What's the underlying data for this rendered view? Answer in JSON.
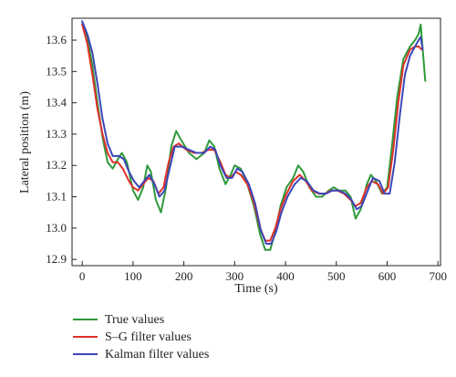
{
  "chart_data": {
    "type": "line",
    "title": "",
    "xlabel": "Time (s)",
    "ylabel": "Lateral position (m)",
    "xlim": [
      -20,
      705
    ],
    "ylim": [
      12.88,
      13.67
    ],
    "xticks": [
      0,
      100,
      200,
      300,
      400,
      500,
      600,
      700
    ],
    "yticks": [
      12.9,
      13.0,
      13.1,
      13.2,
      13.3,
      13.4,
      13.5,
      13.6
    ],
    "yticklabels": [
      "12.9",
      "13.0",
      "13.1",
      "13.2",
      "13.3",
      "13.4",
      "13.5",
      "13.6"
    ],
    "grid": false,
    "legend_position": "below",
    "series": [
      {
        "name": "True values",
        "color": "#2e9a3a",
        "points": [
          [
            0,
            13.66
          ],
          [
            10,
            13.61
          ],
          [
            20,
            13.52
          ],
          [
            30,
            13.4
          ],
          [
            40,
            13.29
          ],
          [
            50,
            13.21
          ],
          [
            60,
            13.19
          ],
          [
            70,
            13.22
          ],
          [
            78,
            13.24
          ],
          [
            88,
            13.21
          ],
          [
            100,
            13.12
          ],
          [
            110,
            13.09
          ],
          [
            120,
            13.13
          ],
          [
            128,
            13.2
          ],
          [
            135,
            13.18
          ],
          [
            145,
            13.09
          ],
          [
            155,
            13.05
          ],
          [
            165,
            13.13
          ],
          [
            175,
            13.26
          ],
          [
            185,
            13.31
          ],
          [
            195,
            13.28
          ],
          [
            210,
            13.24
          ],
          [
            225,
            13.22
          ],
          [
            240,
            13.24
          ],
          [
            250,
            13.28
          ],
          [
            260,
            13.26
          ],
          [
            270,
            13.19
          ],
          [
            282,
            13.14
          ],
          [
            292,
            13.17
          ],
          [
            300,
            13.2
          ],
          [
            312,
            13.19
          ],
          [
            325,
            13.14
          ],
          [
            338,
            13.07
          ],
          [
            350,
            12.98
          ],
          [
            360,
            12.93
          ],
          [
            370,
            12.93
          ],
          [
            380,
            12.99
          ],
          [
            390,
            13.07
          ],
          [
            402,
            13.13
          ],
          [
            415,
            13.16
          ],
          [
            425,
            13.2
          ],
          [
            435,
            13.18
          ],
          [
            447,
            13.13
          ],
          [
            460,
            13.1
          ],
          [
            472,
            13.1
          ],
          [
            485,
            13.12
          ],
          [
            495,
            13.13
          ],
          [
            505,
            13.12
          ],
          [
            518,
            13.12
          ],
          [
            528,
            13.1
          ],
          [
            538,
            13.03
          ],
          [
            548,
            13.06
          ],
          [
            560,
            13.14
          ],
          [
            568,
            13.17
          ],
          [
            578,
            13.15
          ],
          [
            590,
            13.11
          ],
          [
            600,
            13.13
          ],
          [
            610,
            13.27
          ],
          [
            620,
            13.42
          ],
          [
            632,
            13.54
          ],
          [
            645,
            13.58
          ],
          [
            655,
            13.6
          ],
          [
            662,
            13.62
          ],
          [
            666,
            13.65
          ],
          [
            670,
            13.57
          ],
          [
            675,
            13.47
          ]
        ]
      },
      {
        "name": "S–G filter values",
        "color": "#e0302a",
        "points": [
          [
            0,
            13.65
          ],
          [
            10,
            13.59
          ],
          [
            20,
            13.49
          ],
          [
            30,
            13.38
          ],
          [
            40,
            13.3
          ],
          [
            50,
            13.24
          ],
          [
            60,
            13.21
          ],
          [
            70,
            13.21
          ],
          [
            80,
            13.19
          ],
          [
            92,
            13.15
          ],
          [
            100,
            13.13
          ],
          [
            110,
            13.12
          ],
          [
            120,
            13.14
          ],
          [
            130,
            13.16
          ],
          [
            140,
            13.15
          ],
          [
            150,
            13.11
          ],
          [
            160,
            13.13
          ],
          [
            170,
            13.21
          ],
          [
            180,
            13.26
          ],
          [
            190,
            13.27
          ],
          [
            205,
            13.25
          ],
          [
            220,
            13.24
          ],
          [
            235,
            13.24
          ],
          [
            248,
            13.25
          ],
          [
            260,
            13.25
          ],
          [
            272,
            13.21
          ],
          [
            282,
            13.17
          ],
          [
            292,
            13.16
          ],
          [
            302,
            13.18
          ],
          [
            312,
            13.17
          ],
          [
            325,
            13.14
          ],
          [
            338,
            13.08
          ],
          [
            350,
            13.0
          ],
          [
            360,
            12.96
          ],
          [
            370,
            12.96
          ],
          [
            380,
            13.0
          ],
          [
            390,
            13.06
          ],
          [
            402,
            13.11
          ],
          [
            415,
            13.15
          ],
          [
            428,
            13.17
          ],
          [
            440,
            13.15
          ],
          [
            452,
            13.12
          ],
          [
            465,
            13.11
          ],
          [
            478,
            13.11
          ],
          [
            490,
            13.12
          ],
          [
            502,
            13.12
          ],
          [
            515,
            13.11
          ],
          [
            528,
            13.09
          ],
          [
            538,
            13.07
          ],
          [
            548,
            13.08
          ],
          [
            560,
            13.13
          ],
          [
            570,
            13.15
          ],
          [
            582,
            13.14
          ],
          [
            592,
            13.11
          ],
          [
            602,
            13.13
          ],
          [
            612,
            13.25
          ],
          [
            622,
            13.4
          ],
          [
            632,
            13.52
          ],
          [
            645,
            13.57
          ],
          [
            655,
            13.58
          ],
          [
            662,
            13.58
          ],
          [
            668,
            13.57
          ]
        ]
      },
      {
        "name": "Kalman filter values",
        "color": "#3b46b8",
        "points": [
          [
            0,
            13.66
          ],
          [
            10,
            13.62
          ],
          [
            20,
            13.56
          ],
          [
            30,
            13.46
          ],
          [
            40,
            13.35
          ],
          [
            50,
            13.27
          ],
          [
            60,
            13.23
          ],
          [
            72,
            13.23
          ],
          [
            82,
            13.22
          ],
          [
            92,
            13.18
          ],
          [
            102,
            13.15
          ],
          [
            112,
            13.13
          ],
          [
            122,
            13.15
          ],
          [
            132,
            13.17
          ],
          [
            142,
            13.14
          ],
          [
            152,
            13.1
          ],
          [
            162,
            13.12
          ],
          [
            172,
            13.19
          ],
          [
            182,
            13.26
          ],
          [
            195,
            13.26
          ],
          [
            210,
            13.25
          ],
          [
            225,
            13.24
          ],
          [
            240,
            13.24
          ],
          [
            252,
            13.26
          ],
          [
            262,
            13.25
          ],
          [
            272,
            13.2
          ],
          [
            284,
            13.16
          ],
          [
            295,
            13.16
          ],
          [
            305,
            13.19
          ],
          [
            315,
            13.18
          ],
          [
            328,
            13.14
          ],
          [
            340,
            13.08
          ],
          [
            352,
            12.99
          ],
          [
            362,
            12.95
          ],
          [
            372,
            12.95
          ],
          [
            382,
            12.99
          ],
          [
            392,
            13.05
          ],
          [
            404,
            13.1
          ],
          [
            418,
            13.14
          ],
          [
            430,
            13.16
          ],
          [
            442,
            13.15
          ],
          [
            455,
            13.12
          ],
          [
            468,
            13.11
          ],
          [
            480,
            13.11
          ],
          [
            492,
            13.12
          ],
          [
            505,
            13.12
          ],
          [
            518,
            13.11
          ],
          [
            530,
            13.09
          ],
          [
            540,
            13.06
          ],
          [
            550,
            13.07
          ],
          [
            562,
            13.12
          ],
          [
            572,
            13.16
          ],
          [
            585,
            13.15
          ],
          [
            595,
            13.11
          ],
          [
            605,
            13.11
          ],
          [
            615,
            13.21
          ],
          [
            625,
            13.36
          ],
          [
            635,
            13.49
          ],
          [
            645,
            13.55
          ],
          [
            655,
            13.58
          ],
          [
            662,
            13.6
          ],
          [
            666,
            13.61
          ],
          [
            670,
            13.57
          ]
        ]
      }
    ]
  }
}
